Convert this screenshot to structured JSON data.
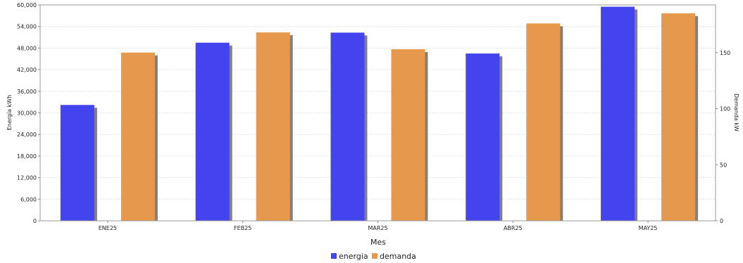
{
  "chart_data": {
    "type": "bar",
    "title": "",
    "xlabel": "Mes",
    "ylabel_left": "Energía kWh",
    "ylabel_right": "Demanda kW",
    "categories": [
      "ENE25",
      "FEB25",
      "MAR25",
      "ABR25",
      "MAY25"
    ],
    "series": [
      {
        "name": "energia",
        "axis": "left",
        "color": "#4444ee",
        "values": [
          32200,
          49500,
          52300,
          46500,
          59500
        ]
      },
      {
        "name": "demanda",
        "axis": "right",
        "color": "#e6994d",
        "values": [
          150,
          168,
          153,
          176,
          185
        ]
      }
    ],
    "ylim_left": [
      0,
      60000
    ],
    "yticks_left": [
      "0",
      "6,000",
      "12,000",
      "18,000",
      "24,000",
      "30,000",
      "36,000",
      "42,000",
      "48,000",
      "54,000",
      "60,000"
    ],
    "ylim_right": [
      0,
      192.5
    ],
    "yticks_right": [
      "0",
      "50",
      "100",
      "150"
    ],
    "grid": true,
    "legend_position": "bottom-center"
  }
}
